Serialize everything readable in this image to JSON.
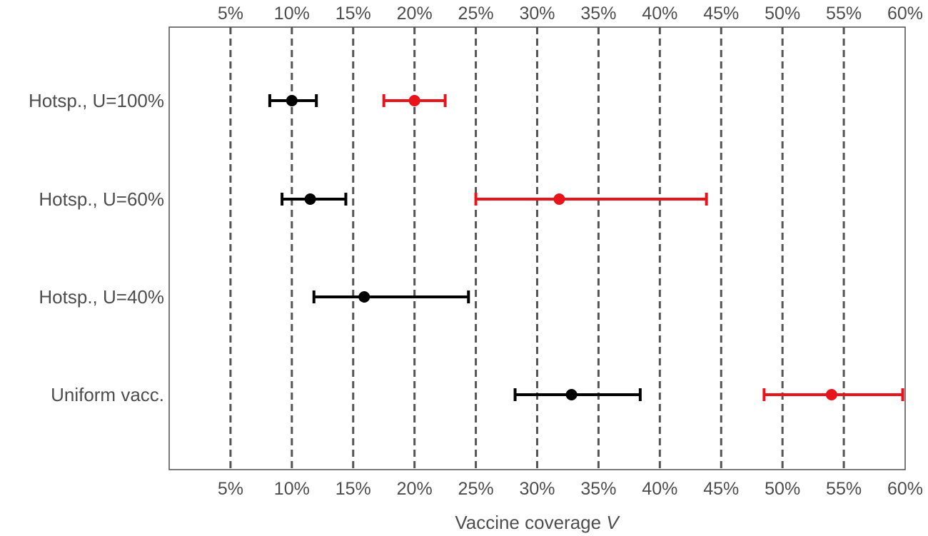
{
  "chart_data": {
    "type": "scatter",
    "subtype": "interval-dot-plot",
    "title": "",
    "xlabel_text": "Vaccine coverage",
    "xlabel_symbol": "V",
    "xlim": [
      0,
      60
    ],
    "x_ticks": [
      {
        "value": 5,
        "label": "5%"
      },
      {
        "value": 10,
        "label": "10%"
      },
      {
        "value": 15,
        "label": "15%"
      },
      {
        "value": 20,
        "label": "20%"
      },
      {
        "value": 25,
        "label": "25%"
      },
      {
        "value": 30,
        "label": "30%"
      },
      {
        "value": 35,
        "label": "35%"
      },
      {
        "value": 40,
        "label": "40%"
      },
      {
        "value": 45,
        "label": "45%"
      },
      {
        "value": 50,
        "label": "50%"
      },
      {
        "value": 55,
        "label": "55%"
      },
      {
        "value": 60,
        "label": "60%"
      }
    ],
    "ticks_on_top_and_bottom": true,
    "vertical_gridlines": "dashed at each tick",
    "categories": [
      "Hotsp., U=100%",
      "Hotsp., U=60%",
      "Hotsp., U=40%",
      "Uniform vacc."
    ],
    "series": [
      {
        "color": "#000000",
        "points": [
          {
            "category": "Hotsp., U=100%",
            "x": 10.0,
            "low": 8.2,
            "high": 12.0
          },
          {
            "category": "Hotsp., U=60%",
            "x": 11.5,
            "low": 9.2,
            "high": 14.4
          },
          {
            "category": "Hotsp., U=40%",
            "x": 15.9,
            "low": 11.8,
            "high": 24.4
          },
          {
            "category": "Uniform vacc.",
            "x": 32.8,
            "low": 28.2,
            "high": 38.4
          }
        ]
      },
      {
        "color": "#e8141b",
        "points": [
          {
            "category": "Hotsp., U=100%",
            "x": 20.0,
            "low": 17.5,
            "high": 22.5
          },
          {
            "category": "Hotsp., U=60%",
            "x": 31.8,
            "low": 25.0,
            "high": 43.8
          },
          {
            "category": "Uniform vacc.",
            "x": 54.0,
            "low": 48.5,
            "high": 59.8
          }
        ]
      }
    ]
  },
  "colors": {
    "grid": "#555555",
    "frame": "#4d4d4d",
    "text": "#4d4d4d"
  }
}
